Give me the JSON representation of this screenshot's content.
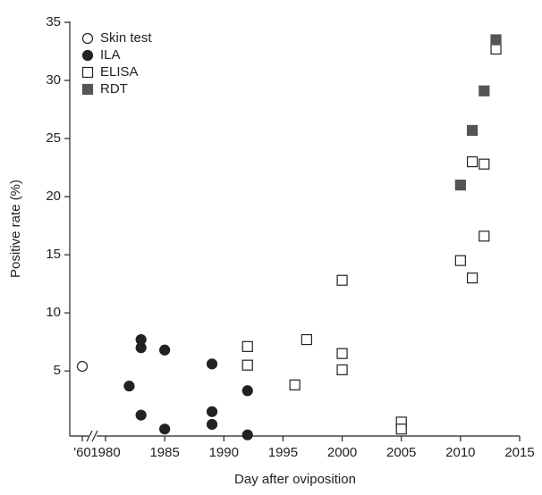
{
  "chart_data": {
    "type": "scatter",
    "xlabel": "Day after oviposition",
    "ylabel": "Positive rate (%)",
    "xlim": [
      1960,
      2015
    ],
    "ylim": [
      -0.6,
      35
    ],
    "x_axis_break": true,
    "xticks": [
      {
        "value": 1960,
        "label": "'60"
      },
      1980,
      1985,
      1990,
      1995,
      2000,
      2005,
      2010,
      2015
    ],
    "yticks": [
      5,
      10,
      15,
      20,
      25,
      30,
      35
    ],
    "legend": "upper left",
    "series": [
      {
        "name": "Skin test",
        "color": "#222222",
        "marker": "open-circle",
        "x": [
          1960
        ],
        "values": [
          5.4
        ]
      },
      {
        "name": "ILA",
        "color": "#222222",
        "marker": "filled-circle",
        "x": [
          1982,
          1983,
          1983,
          1983,
          1985,
          1985,
          1989,
          1989,
          1989,
          1992,
          1992
        ],
        "values": [
          3.7,
          7.7,
          7.0,
          1.2,
          6.8,
          0,
          5.6,
          1.5,
          0.4,
          3.3,
          -0.5
        ]
      },
      {
        "name": "ELISA",
        "color": "#222222",
        "marker": "open-square",
        "x": [
          1992,
          1992,
          1996,
          1997,
          2000,
          2000,
          2000,
          2005,
          2005,
          2010,
          2011,
          2011,
          2012,
          2012,
          2013
        ],
        "values": [
          7.1,
          5.5,
          3.8,
          7.7,
          12.8,
          6.5,
          5.1,
          0.6,
          0,
          14.5,
          13.0,
          23.0,
          16.6,
          22.8,
          32.7
        ]
      },
      {
        "name": "RDT",
        "color": "#555555",
        "marker": "filled-square",
        "x": [
          2010,
          2011,
          2012,
          2013
        ],
        "values": [
          21.0,
          25.7,
          29.1,
          33.5
        ]
      }
    ]
  }
}
